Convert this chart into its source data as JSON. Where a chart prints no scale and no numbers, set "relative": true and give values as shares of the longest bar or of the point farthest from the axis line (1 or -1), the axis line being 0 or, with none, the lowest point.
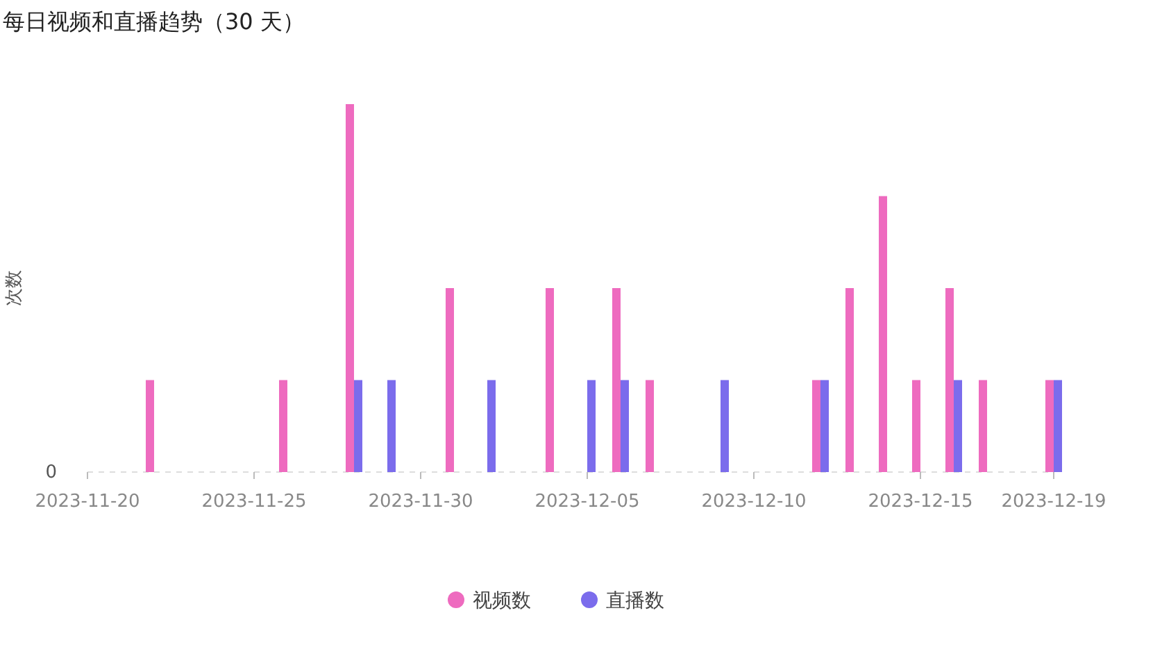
{
  "chart_data": {
    "type": "bar",
    "title": "每日视频和直播趋势（30 天）",
    "ylabel": "次数",
    "relative": true,
    "annotations": [
      "0"
    ],
    "x": [
      "2023-11-20",
      "2023-11-21",
      "2023-11-22",
      "2023-11-23",
      "2023-11-24",
      "2023-11-25",
      "2023-11-26",
      "2023-11-27",
      "2023-11-28",
      "2023-11-29",
      "2023-11-30",
      "2023-12-01",
      "2023-12-02",
      "2023-12-03",
      "2023-12-04",
      "2023-12-05",
      "2023-12-06",
      "2023-12-07",
      "2023-12-08",
      "2023-12-09",
      "2023-12-10",
      "2023-12-11",
      "2023-12-12",
      "2023-12-13",
      "2023-12-14",
      "2023-12-15",
      "2023-12-16",
      "2023-12-17",
      "2023-12-18",
      "2023-12-19"
    ],
    "xlim": [
      "2023-11-20",
      "2023-12-19"
    ],
    "xticks": [
      "2023-11-20",
      "2023-11-25",
      "2023-11-30",
      "2023-12-05",
      "2023-12-10",
      "2023-12-15",
      "2023-12-19"
    ],
    "series": [
      {
        "name": "视频数",
        "color": "#ee6bbf",
        "values": [
          0,
          0,
          0.25,
          0,
          0,
          0,
          0.25,
          0,
          1,
          0,
          0,
          0.5,
          0,
          0,
          0.5,
          0,
          0.5,
          0.25,
          0,
          0,
          0,
          0,
          0.25,
          0.5,
          0.75,
          0.25,
          0.5,
          0.25,
          0,
          0.25
        ]
      },
      {
        "name": "直播数",
        "color": "#7b6cec",
        "values": [
          0,
          0,
          0,
          0,
          0,
          0,
          0,
          0,
          0.25,
          0.25,
          0,
          0,
          0.25,
          0,
          0,
          0.25,
          0.25,
          0,
          0,
          0.25,
          0,
          0,
          0.25,
          0,
          0,
          0,
          0.25,
          0,
          0,
          0.25
        ]
      }
    ],
    "legend": "bottom"
  }
}
